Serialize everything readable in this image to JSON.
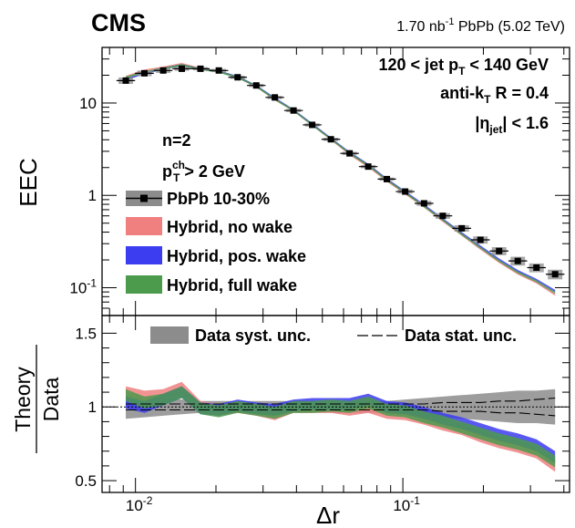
{
  "header": {
    "experiment": "CMS",
    "lumi_prefix": "1.70 nb",
    "lumi_exp": "-1",
    "lumi_suffix": " PbPb (5.02 TeV)"
  },
  "selection": {
    "jetpt_lo": "120 < jet p",
    "jetpt_sub": "T",
    "jetpt_hi": " < 140 GeV",
    "algo_pre": "anti-k",
    "algo_sub": "T",
    "algo_post": " R = 0.4",
    "eta_pre": "|η",
    "eta_sub": "jet",
    "eta_post": "| < 1.6"
  },
  "track_cut": {
    "n_label": "n=2",
    "pt_pre": "p",
    "pt_sup": "ch",
    "pt_sub": "T",
    "pt_post": " > 2 GeV"
  },
  "legend_top": [
    {
      "label": "PbPb 10-30%",
      "kind": "data",
      "color": "#000000"
    },
    {
      "label": "Hybrid, no wake",
      "kind": "band",
      "color": "#f08080"
    },
    {
      "label": "Hybrid, pos. wake",
      "kind": "band",
      "color": "#3c3cf0"
    },
    {
      "label": "Hybrid, full wake",
      "kind": "band",
      "color": "#4c9a4c"
    }
  ],
  "legend_bottom": {
    "syst_label": "Data syst. unc.",
    "stat_label": "Data stat. unc."
  },
  "chart_data": [
    {
      "type": "scatter",
      "panel": "top",
      "ylabel": "EEC",
      "xscale": "log",
      "yscale": "log",
      "xlim": [
        0.0075,
        0.42
      ],
      "ylim": [
        0.05,
        40
      ],
      "xticks": [
        {
          "v": 0.01,
          "base": "10",
          "exp": "-2"
        },
        {
          "v": 0.1,
          "base": "10",
          "exp": "-1"
        }
      ],
      "yticks": [
        {
          "v": 0.1,
          "base": "10",
          "exp": "-1"
        },
        {
          "v": 1,
          "label": "1"
        },
        {
          "v": 10,
          "label": "10"
        }
      ],
      "data": {
        "name": "PbPb 10-30%",
        "x": [
          0.0092,
          0.0108,
          0.0127,
          0.0149,
          0.0175,
          0.0205,
          0.0241,
          0.0283,
          0.0332,
          0.039,
          0.0458,
          0.0538,
          0.0632,
          0.0742,
          0.0871,
          0.102,
          0.12,
          0.141,
          0.166,
          0.195,
          0.229,
          0.269,
          0.316,
          0.371
        ],
        "y": [
          17.5,
          21.0,
          22.5,
          23.5,
          23.5,
          22.5,
          19.0,
          15.5,
          11.5,
          8.3,
          5.8,
          4.05,
          2.85,
          2.05,
          1.5,
          1.1,
          0.82,
          0.6,
          0.44,
          0.33,
          0.25,
          0.195,
          0.165,
          0.14
        ],
        "syst_rel": [
          0.08,
          0.07,
          0.06,
          0.05,
          0.04,
          0.04,
          0.04,
          0.04,
          0.04,
          0.04,
          0.04,
          0.04,
          0.04,
          0.04,
          0.04,
          0.05,
          0.06,
          0.07,
          0.08,
          0.09,
          0.1,
          0.11,
          0.11,
          0.12
        ]
      },
      "series": [
        {
          "name": "Hybrid, no wake",
          "color": "#f08080",
          "ratio": [
            1.1,
            1.07,
            1.08,
            1.13,
            1.0,
            0.98,
            1.0,
            0.98,
            0.95,
            1.0,
            1.0,
            1.0,
            0.98,
            1.0,
            0.96,
            0.95,
            0.92,
            0.88,
            0.85,
            0.8,
            0.76,
            0.73,
            0.69,
            0.6
          ]
        },
        {
          "name": "Hybrid, pos. wake",
          "color": "#3c3cf0",
          "ratio": [
            1.03,
            1.0,
            1.05,
            1.1,
            0.99,
            0.98,
            1.01,
            0.99,
            0.98,
            1.01,
            1.02,
            1.02,
            1.02,
            1.05,
            1.0,
            0.99,
            0.96,
            0.92,
            0.89,
            0.85,
            0.81,
            0.78,
            0.74,
            0.66
          ]
        },
        {
          "name": "Hybrid, full wake",
          "color": "#4c9a4c",
          "ratio": [
            1.08,
            1.03,
            1.05,
            1.1,
            0.99,
            0.97,
            1.0,
            0.98,
            0.96,
            1.0,
            1.0,
            1.01,
            1.0,
            1.03,
            0.98,
            0.97,
            0.93,
            0.9,
            0.86,
            0.82,
            0.78,
            0.75,
            0.71,
            0.63
          ]
        }
      ]
    },
    {
      "type": "line",
      "panel": "bottom",
      "ylabel_num": "Theory",
      "ylabel_den": "Data",
      "xlabel": "Δr",
      "xscale": "log",
      "xlim": [
        0.0075,
        0.42
      ],
      "ylim": [
        0.42,
        1.62
      ],
      "yticks": [
        {
          "v": 0.5,
          "label": "0.5"
        },
        {
          "v": 1,
          "label": "1"
        },
        {
          "v": 1.5,
          "label": "1.5"
        }
      ],
      "reference_line": 1.0,
      "band_halfwidth": 0.04,
      "data_syst_rel": [
        0.08,
        0.07,
        0.06,
        0.05,
        0.04,
        0.04,
        0.04,
        0.04,
        0.04,
        0.04,
        0.04,
        0.04,
        0.04,
        0.04,
        0.04,
        0.05,
        0.06,
        0.07,
        0.08,
        0.09,
        0.1,
        0.11,
        0.11,
        0.12
      ],
      "data_stat_rel": [
        0.02,
        0.02,
        0.02,
        0.02,
        0.02,
        0.02,
        0.02,
        0.02,
        0.02,
        0.02,
        0.02,
        0.02,
        0.02,
        0.02,
        0.02,
        0.02,
        0.02,
        0.03,
        0.03,
        0.03,
        0.04,
        0.04,
        0.05,
        0.06
      ]
    }
  ]
}
